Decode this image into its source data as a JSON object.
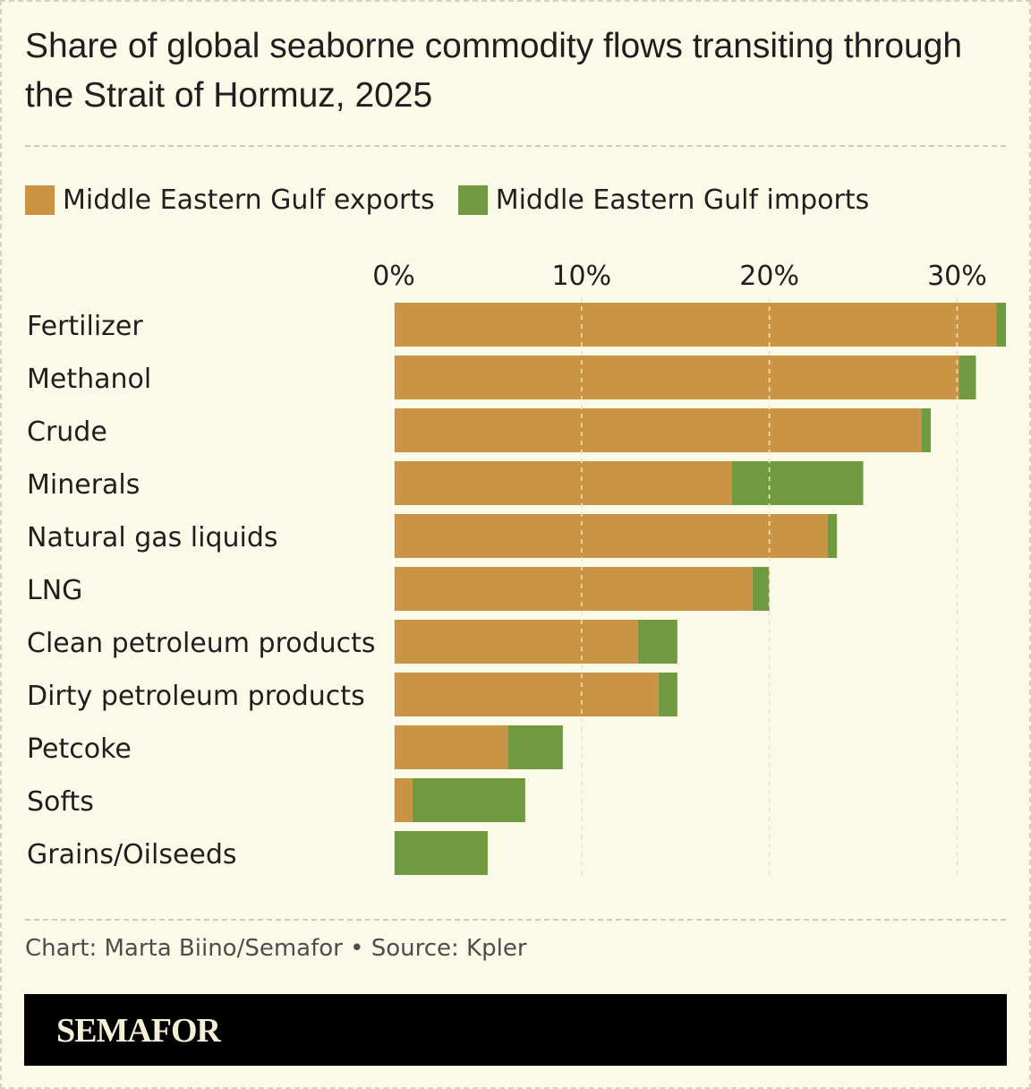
{
  "title": "Share of global seaborne commodity flows transiting through the Strait of Hormuz, 2025",
  "legend": {
    "exports_label": "Middle Eastern Gulf exports",
    "imports_label": "Middle Eastern Gulf imports"
  },
  "colors": {
    "exports": "#c99443",
    "imports": "#6f9a40",
    "background": "#fbf9e8",
    "gridline": "#efe2bf"
  },
  "source": "Chart: Marta Biino/Semafor • Source: Kpler",
  "brand": "SEMAFOR",
  "chart_data": {
    "type": "bar",
    "orientation": "horizontal",
    "stacked": true,
    "categories": [
      "Fertilizer",
      "Methanol",
      "Crude",
      "Minerals",
      "Natural gas liquids",
      "LNG",
      "Clean petroleum products",
      "Dirty petroleum products",
      "Petcoke",
      "Softs",
      "Grains/Oilseeds"
    ],
    "series": [
      {
        "name": "Middle Eastern Gulf exports",
        "values": [
          32.1,
          30.1,
          28.1,
          18.0,
          23.1,
          19.1,
          13.0,
          14.1,
          6.1,
          1.0,
          0.0
        ]
      },
      {
        "name": "Middle Eastern Gulf imports",
        "values": [
          0.5,
          0.9,
          0.5,
          7.0,
          0.5,
          0.9,
          2.1,
          1.0,
          2.9,
          6.0,
          5.0
        ]
      }
    ],
    "xticks": [
      "0%",
      "10%",
      "20%",
      "30%"
    ],
    "xtick_values": [
      0,
      10,
      20,
      30
    ],
    "xlim": [
      0,
      32.6
    ],
    "grid": true,
    "legend_position": "top-left"
  }
}
